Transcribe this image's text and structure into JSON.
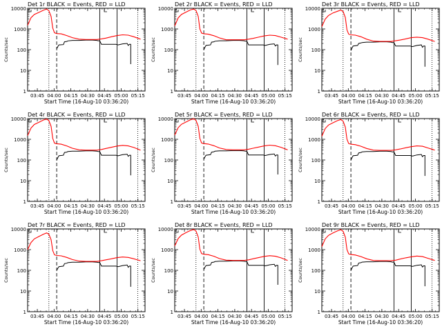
{
  "colors": {
    "events": "#000000",
    "lld": "#ff0000",
    "background": "#ffffff"
  },
  "chart_data": {
    "type": "line",
    "title_suffix": " BLACK = Events, RED = LLD",
    "xlabel": "Start Time (16-Aug-10 03:36:20)",
    "ylabel": "Counts/sec",
    "x_tick_labels": [
      "03:45",
      "04:00",
      "04:15",
      "04:30",
      "04:45",
      "05:00",
      "05:15"
    ],
    "x_ticks_minutes": [
      8.67,
      23.67,
      38.67,
      53.67,
      68.67,
      83.67,
      98.67
    ],
    "xlim_minutes": [
      0,
      105
    ],
    "y_tick_labels": [
      "1",
      "10",
      "100",
      "1000",
      "10000"
    ],
    "ylim": [
      1,
      10000
    ],
    "yscale": "log",
    "legend": {
      "events": "BLACK = Events",
      "lld": "RED = LLD"
    },
    "vertical_markers_minutes": {
      "dotted": [
        19.0,
        98.5
      ],
      "dashed": [
        26.0
      ],
      "solid": [
        64.5,
        80.0
      ]
    },
    "panels": [
      {
        "title": "Det 1r",
        "lld": {
          "x": [
            0,
            3,
            6,
            10,
            14,
            17,
            19,
            21,
            22.5,
            24,
            26,
            30,
            35,
            40,
            46,
            52,
            58,
            62,
            66,
            70,
            75,
            80,
            85,
            90,
            95,
            101
          ],
          "y": [
            1500,
            3500,
            5000,
            6300,
            8000,
            9200,
            7600,
            4000,
            1100,
            650,
            600,
            580,
            480,
            380,
            320,
            310,
            310,
            310,
            330,
            360,
            420,
            480,
            520,
            500,
            420,
            320
          ]
        },
        "events": {
          "x": [
            26,
            27,
            28,
            32,
            33,
            35,
            36,
            40,
            46,
            52,
            58,
            62,
            63,
            64.5,
            66,
            70,
            75,
            79,
            80,
            81,
            85,
            89,
            90,
            91,
            92,
            92.2,
            92.2
          ],
          "y": [
            110,
            140,
            170,
            175,
            240,
            250,
            265,
            280,
            280,
            290,
            290,
            280,
            270,
            270,
            180,
            180,
            180,
            180,
            175,
            170,
            190,
            200,
            160,
            180,
            180,
            180,
            20
          ]
        }
      },
      {
        "title": "Det 2r",
        "lld": {
          "x": [
            0,
            3,
            6,
            10,
            14,
            17,
            19,
            21,
            22.5,
            24,
            26,
            30,
            35,
            40,
            46,
            52,
            58,
            62,
            66,
            70,
            75,
            80,
            85,
            90,
            95,
            101
          ],
          "y": [
            1400,
            3400,
            5000,
            6500,
            8300,
            9200,
            7800,
            4100,
            1000,
            630,
            590,
            560,
            470,
            370,
            300,
            300,
            300,
            300,
            320,
            350,
            400,
            460,
            500,
            480,
            400,
            320
          ]
        },
        "events": {
          "x": [
            26,
            27,
            28,
            32,
            33,
            35,
            36,
            40,
            46,
            52,
            58,
            62,
            63,
            64.5,
            66,
            70,
            75,
            79,
            80,
            81,
            85,
            89,
            90,
            91,
            92,
            92.2,
            92.2
          ],
          "y": [
            100,
            130,
            160,
            170,
            230,
            240,
            255,
            270,
            270,
            280,
            280,
            270,
            260,
            260,
            170,
            170,
            170,
            170,
            165,
            160,
            180,
            190,
            150,
            170,
            170,
            170,
            18
          ]
        }
      },
      {
        "title": "Det 3r",
        "lld": {
          "x": [
            0,
            3,
            6,
            10,
            14,
            17,
            19,
            21,
            22.5,
            24,
            26,
            30,
            35,
            40,
            46,
            52,
            58,
            62,
            66,
            70,
            75,
            80,
            85,
            90,
            95,
            101
          ],
          "y": [
            1300,
            3000,
            4500,
            6000,
            7200,
            8200,
            7000,
            3600,
            900,
            560,
            520,
            500,
            420,
            320,
            260,
            250,
            250,
            250,
            270,
            290,
            330,
            380,
            400,
            380,
            320,
            250
          ]
        },
        "events": {
          "x": [
            26,
            27,
            28,
            32,
            33,
            35,
            36,
            40,
            46,
            52,
            58,
            62,
            63,
            64.5,
            66,
            70,
            75,
            79,
            80,
            81,
            85,
            89,
            90,
            91,
            92,
            92.2,
            92.2
          ],
          "y": [
            90,
            120,
            150,
            160,
            200,
            210,
            220,
            230,
            230,
            240,
            240,
            230,
            220,
            220,
            150,
            150,
            150,
            150,
            145,
            140,
            160,
            170,
            130,
            150,
            150,
            150,
            15
          ]
        }
      },
      {
        "title": "Det 4r",
        "lld": {
          "x": [
            0,
            3,
            6,
            10,
            14,
            17,
            19,
            21,
            22.5,
            24,
            26,
            30,
            35,
            40,
            46,
            52,
            58,
            62,
            66,
            70,
            75,
            80,
            85,
            90,
            95,
            101
          ],
          "y": [
            1500,
            3500,
            5200,
            6600,
            8500,
            9600,
            8000,
            4200,
            1100,
            650,
            610,
            580,
            480,
            370,
            310,
            300,
            300,
            300,
            320,
            360,
            410,
            470,
            510,
            480,
            400,
            300
          ]
        },
        "events": {
          "x": [
            26,
            27,
            28,
            32,
            33,
            35,
            36,
            40,
            46,
            52,
            58,
            62,
            63,
            64.5,
            66,
            70,
            75,
            79,
            80,
            81,
            85,
            89,
            90,
            91,
            92,
            92.2,
            92.2
          ],
          "y": [
            100,
            130,
            160,
            170,
            230,
            240,
            255,
            265,
            265,
            275,
            275,
            265,
            255,
            255,
            170,
            170,
            170,
            170,
            165,
            160,
            180,
            190,
            150,
            170,
            170,
            170,
            18
          ]
        }
      },
      {
        "title": "Det 5r",
        "lld": {
          "x": [
            0,
            3,
            6,
            10,
            14,
            17,
            19,
            21,
            22.5,
            24,
            26,
            30,
            35,
            40,
            46,
            52,
            58,
            62,
            66,
            70,
            75,
            80,
            85,
            90,
            95,
            101
          ],
          "y": [
            1600,
            3600,
            5300,
            6800,
            8800,
            9900,
            8200,
            4300,
            1100,
            660,
            620,
            590,
            490,
            380,
            320,
            310,
            310,
            310,
            330,
            370,
            420,
            480,
            520,
            490,
            410,
            310
          ]
        },
        "events": {
          "x": [
            26,
            27,
            28,
            32,
            33,
            35,
            36,
            40,
            46,
            52,
            58,
            62,
            63,
            64.5,
            66,
            70,
            75,
            79,
            80,
            81,
            85,
            89,
            90,
            91,
            92,
            92.2,
            92.2
          ],
          "y": [
            110,
            140,
            170,
            180,
            240,
            250,
            265,
            275,
            275,
            285,
            285,
            275,
            265,
            265,
            175,
            175,
            175,
            175,
            170,
            165,
            185,
            195,
            155,
            175,
            175,
            175,
            20
          ]
        }
      },
      {
        "title": "Det 6r",
        "lld": {
          "x": [
            0,
            3,
            6,
            10,
            14,
            17,
            19,
            21,
            22.5,
            24,
            26,
            30,
            35,
            40,
            46,
            52,
            58,
            62,
            66,
            70,
            75,
            80,
            85,
            90,
            95,
            101
          ],
          "y": [
            1400,
            3300,
            4900,
            6300,
            8000,
            9000,
            7500,
            3900,
            1000,
            620,
            580,
            550,
            460,
            360,
            300,
            290,
            290,
            290,
            310,
            340,
            390,
            440,
            480,
            460,
            380,
            300
          ]
        },
        "events": {
          "x": [
            26,
            27,
            28,
            32,
            33,
            35,
            36,
            40,
            46,
            52,
            58,
            62,
            63,
            64.5,
            66,
            70,
            75,
            79,
            80,
            81,
            85,
            89,
            90,
            91,
            92,
            92.2,
            92.2
          ],
          "y": [
            100,
            130,
            160,
            170,
            220,
            230,
            245,
            255,
            255,
            265,
            265,
            255,
            245,
            245,
            165,
            165,
            165,
            165,
            160,
            155,
            175,
            185,
            145,
            165,
            165,
            165,
            17
          ]
        }
      },
      {
        "title": "Det 7r",
        "lld": {
          "x": [
            0,
            3,
            6,
            10,
            14,
            17,
            19,
            21,
            22.5,
            24,
            26,
            30,
            35,
            40,
            46,
            52,
            58,
            62,
            66,
            70,
            75,
            80,
            85,
            90,
            95,
            101
          ],
          "y": [
            1000,
            2200,
            3300,
            4300,
            5500,
            6400,
            5500,
            3000,
            900,
            560,
            520,
            500,
            420,
            330,
            280,
            270,
            270,
            270,
            290,
            320,
            360,
            410,
            440,
            420,
            360,
            290
          ]
        },
        "events": {
          "x": [
            26,
            27,
            28,
            32,
            33,
            35,
            36,
            40,
            46,
            52,
            58,
            62,
            63,
            64.5,
            66,
            70,
            75,
            79,
            80,
            81,
            85,
            89,
            90,
            91,
            92,
            92.2,
            92.2
          ],
          "y": [
            100,
            125,
            150,
            160,
            210,
            220,
            235,
            245,
            245,
            255,
            255,
            245,
            240,
            240,
            160,
            160,
            160,
            160,
            155,
            150,
            170,
            180,
            140,
            160,
            160,
            160,
            16
          ]
        }
      },
      {
        "title": "Det 8r",
        "lld": {
          "x": [
            0,
            3,
            6,
            10,
            14,
            17,
            19,
            21,
            22.5,
            24,
            26,
            30,
            35,
            40,
            46,
            52,
            58,
            62,
            66,
            70,
            75,
            80,
            85,
            90,
            95,
            101
          ],
          "y": [
            1500,
            3400,
            5000,
            6600,
            8400,
            9500,
            7900,
            4100,
            1050,
            640,
            600,
            570,
            480,
            370,
            310,
            300,
            300,
            300,
            320,
            360,
            410,
            470,
            510,
            480,
            400,
            300
          ]
        },
        "events": {
          "x": [
            26,
            27,
            28,
            32,
            33,
            35,
            36,
            40,
            46,
            52,
            58,
            62,
            63,
            64.5,
            66,
            70,
            75,
            79,
            80,
            81,
            85,
            89,
            90,
            91,
            92,
            92.2,
            92.2
          ],
          "y": [
            110,
            140,
            170,
            180,
            240,
            250,
            265,
            275,
            275,
            285,
            285,
            275,
            265,
            265,
            175,
            175,
            175,
            175,
            170,
            165,
            185,
            195,
            155,
            175,
            175,
            175,
            20
          ]
        }
      },
      {
        "title": "Det 9r",
        "lld": {
          "x": [
            0,
            3,
            6,
            10,
            14,
            17,
            19,
            21,
            22.5,
            24,
            26,
            30,
            35,
            40,
            46,
            52,
            58,
            62,
            66,
            70,
            75,
            80,
            85,
            90,
            95,
            101
          ],
          "y": [
            1400,
            3300,
            4900,
            6400,
            8100,
            9200,
            7700,
            4000,
            1000,
            620,
            580,
            550,
            460,
            360,
            300,
            290,
            290,
            290,
            310,
            350,
            400,
            450,
            490,
            460,
            380,
            300
          ]
        },
        "events": {
          "x": [
            26,
            27,
            28,
            32,
            33,
            35,
            36,
            40,
            46,
            52,
            58,
            62,
            63,
            64.5,
            66,
            70,
            75,
            79,
            80,
            81,
            85,
            89,
            90,
            91,
            92,
            92.2,
            92.2
          ],
          "y": [
            100,
            130,
            160,
            170,
            225,
            235,
            250,
            260,
            260,
            270,
            270,
            260,
            250,
            250,
            165,
            165,
            165,
            165,
            160,
            155,
            175,
            185,
            145,
            165,
            165,
            165,
            17
          ]
        }
      }
    ]
  }
}
